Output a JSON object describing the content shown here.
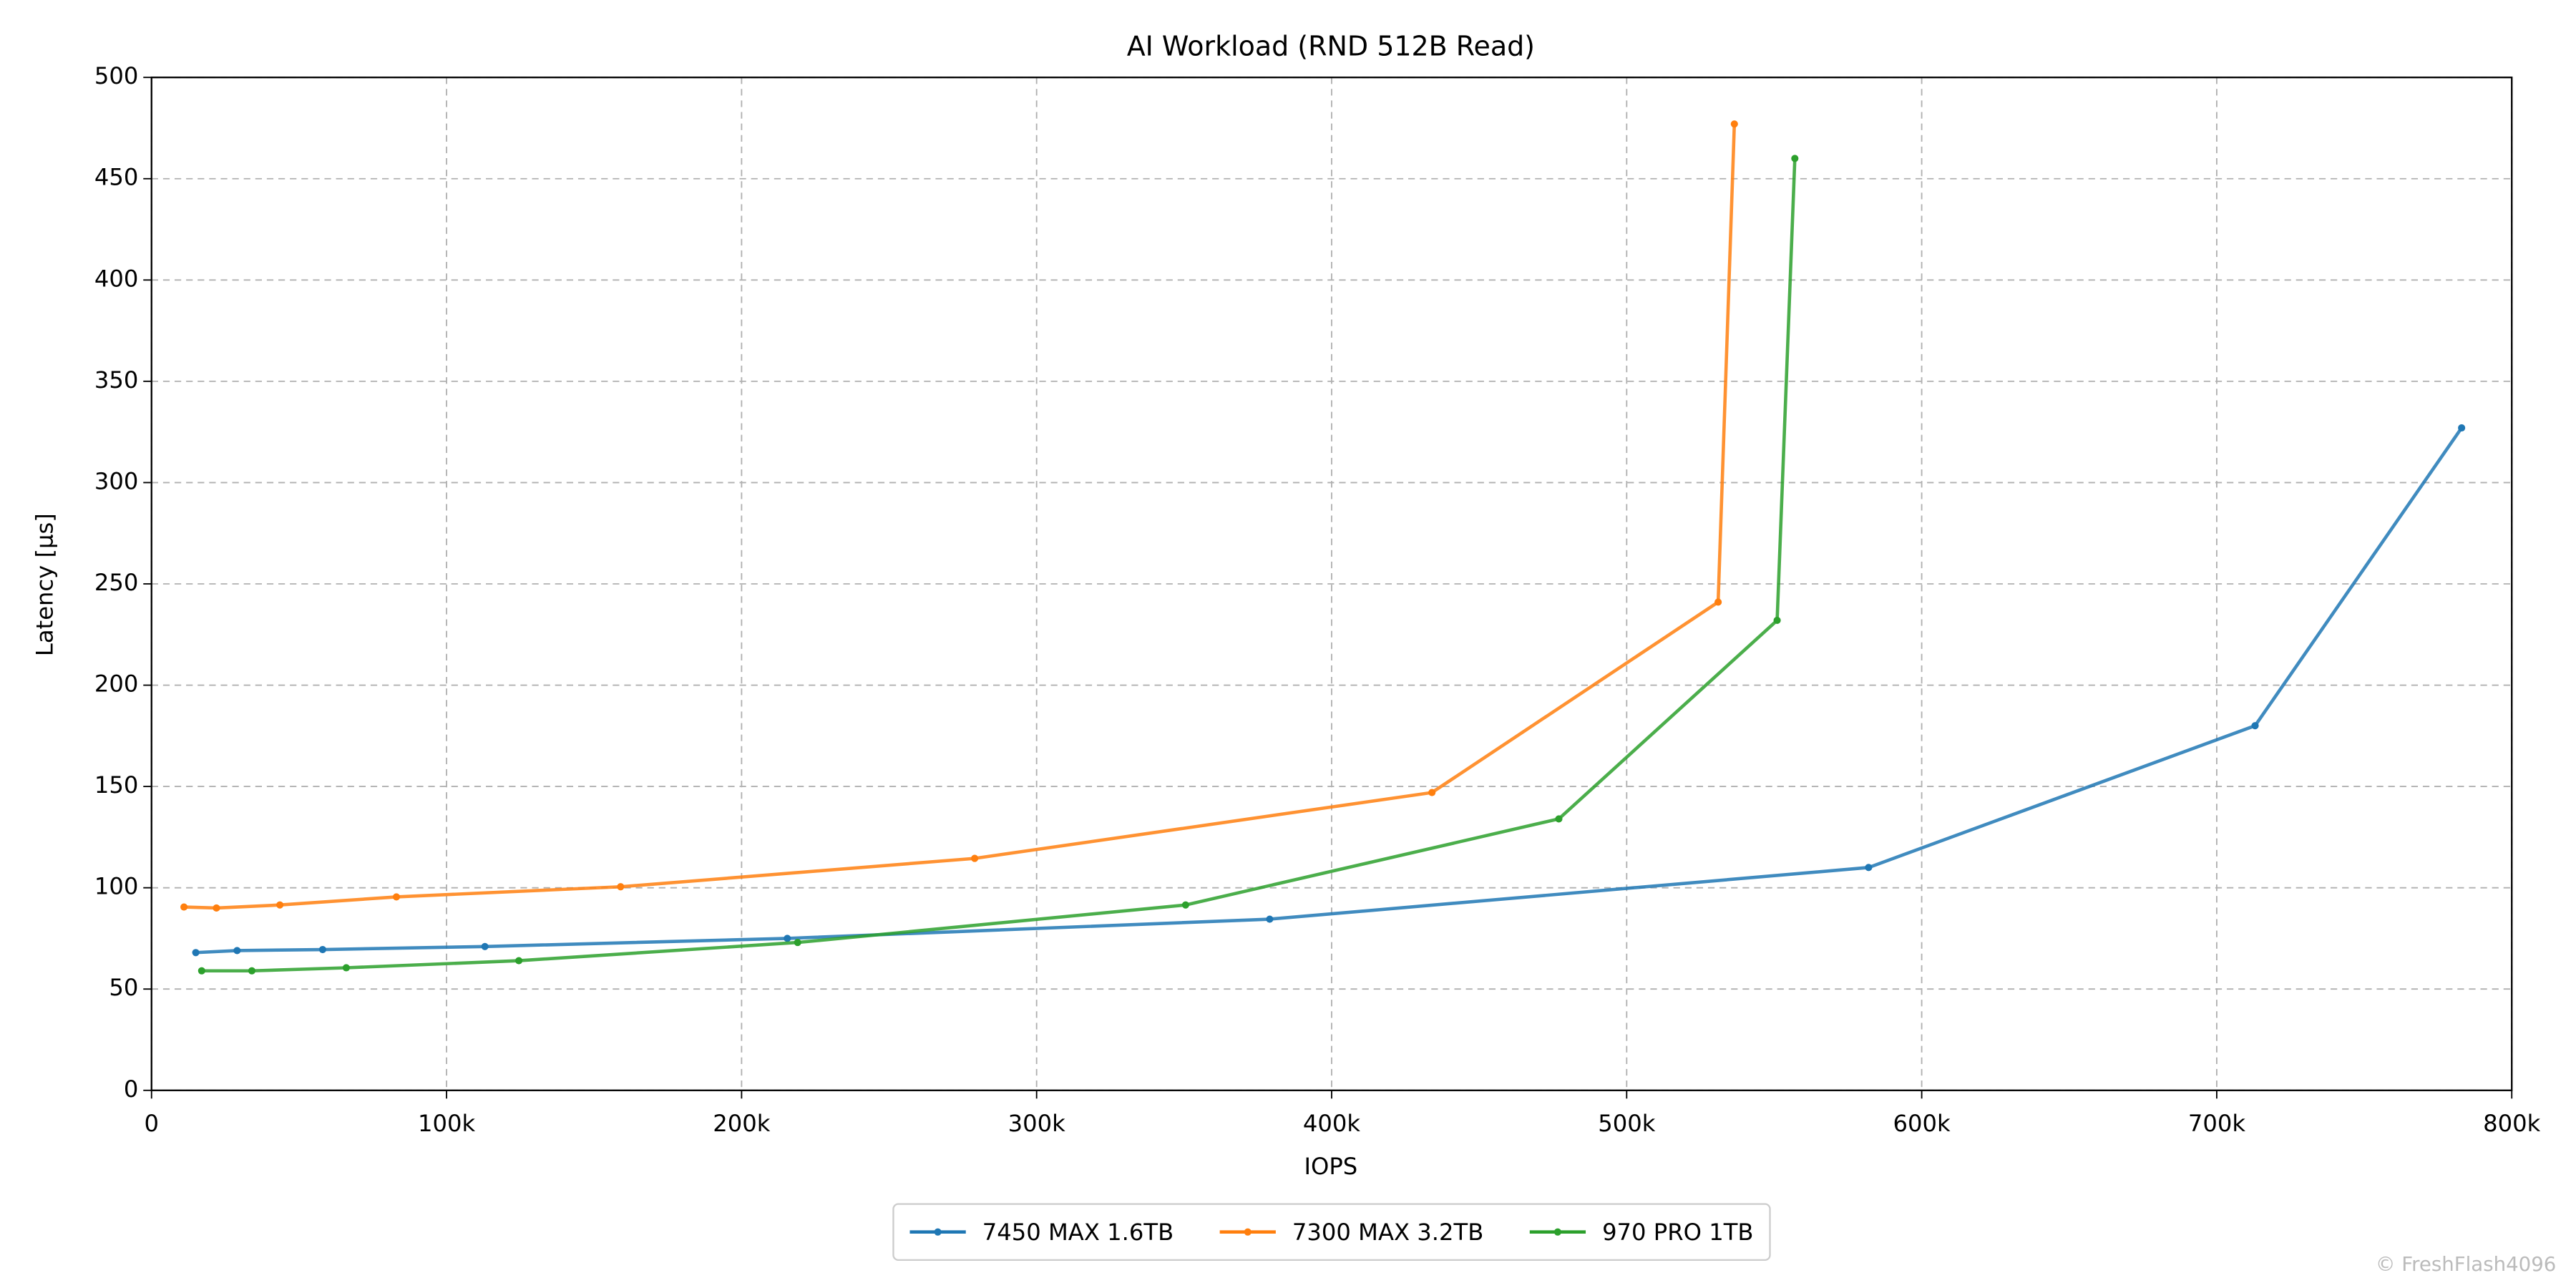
{
  "chart_data": {
    "type": "line",
    "title": "AI Workload (RND 512B Read)",
    "xlabel": "IOPS",
    "ylabel": "Latency [µs]",
    "xlim": [
      0,
      800000
    ],
    "ylim": [
      0,
      500
    ],
    "xticks": [
      0,
      {
        "value": 100000,
        "label": "100k"
      },
      {
        "value": 200000,
        "label": "200k"
      },
      {
        "value": 300000,
        "label": "300k"
      },
      {
        "value": 400000,
        "label": "400k"
      },
      {
        "value": 500000,
        "label": "500k"
      },
      {
        "value": 600000,
        "label": "600k"
      },
      {
        "value": 700000,
        "label": "700k"
      },
      {
        "value": 800000,
        "label": "800k"
      }
    ],
    "yticks": [
      0,
      50,
      100,
      150,
      200,
      250,
      300,
      350,
      400,
      450,
      500
    ],
    "grid": true,
    "legend": "bottom",
    "watermark": "© FreshFlash4096",
    "series": [
      {
        "name": "7450 MAX 1.6TB",
        "color": "#1f77b4",
        "x": [
          15000,
          29000,
          58000,
          113000,
          215500,
          379000,
          582000,
          713000,
          783000
        ],
        "values": [
          68,
          69,
          69.5,
          71,
          75,
          84.5,
          110,
          180,
          327
        ]
      },
      {
        "name": "7300 MAX 3.2TB",
        "color": "#ff7f0e",
        "x": [
          11000,
          22000,
          43500,
          83000,
          159000,
          279000,
          434000,
          531000,
          536500
        ],
        "values": [
          90.5,
          90,
          91.5,
          95.5,
          100.5,
          114.5,
          147,
          241,
          477
        ]
      },
      {
        "name": "970 PRO 1TB",
        "color": "#2ca02c",
        "x": [
          17000,
          34000,
          66000,
          124500,
          219000,
          350500,
          477000,
          551000,
          557000
        ],
        "values": [
          59,
          59,
          60.5,
          64,
          73,
          91.5,
          134,
          232,
          460
        ]
      }
    ]
  }
}
